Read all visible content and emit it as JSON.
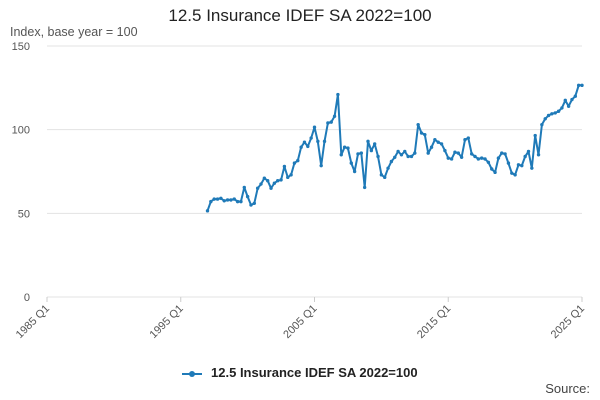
{
  "chart_data": {
    "type": "line",
    "title": "12.5 Insurance IDEF SA 2022=100",
    "ylabel": "Index, base year = 100",
    "xlabel": "",
    "source_label": "Source:",
    "ylim": [
      0,
      150
    ],
    "y_ticks": [
      0,
      50,
      100,
      150
    ],
    "x_range": [
      "1985 Q1",
      "2025 Q1"
    ],
    "x_ticks": [
      "1985 Q1",
      "1995 Q1",
      "2005 Q1",
      "2015 Q1",
      "2025 Q1"
    ],
    "grid": true,
    "legend_position": "bottom",
    "color": "#1f7ab8",
    "series": [
      {
        "name": "12.5 Insurance IDEF SA 2022=100",
        "x": [
          "1997 Q1",
          "1997 Q2",
          "1997 Q3",
          "1997 Q4",
          "1998 Q1",
          "1998 Q2",
          "1998 Q3",
          "1998 Q4",
          "1999 Q1",
          "1999 Q2",
          "1999 Q3",
          "1999 Q4",
          "2000 Q1",
          "2000 Q2",
          "2000 Q3",
          "2000 Q4",
          "2001 Q1",
          "2001 Q2",
          "2001 Q3",
          "2001 Q4",
          "2002 Q1",
          "2002 Q2",
          "2002 Q3",
          "2002 Q4",
          "2003 Q1",
          "2003 Q2",
          "2003 Q3",
          "2003 Q4",
          "2004 Q1",
          "2004 Q2",
          "2004 Q3",
          "2004 Q4",
          "2005 Q1",
          "2005 Q2",
          "2005 Q3",
          "2005 Q4",
          "2006 Q1",
          "2006 Q2",
          "2006 Q3",
          "2006 Q4",
          "2007 Q1",
          "2007 Q2",
          "2007 Q3",
          "2007 Q4",
          "2008 Q1",
          "2008 Q2",
          "2008 Q3",
          "2008 Q4",
          "2009 Q1",
          "2009 Q2",
          "2009 Q3",
          "2009 Q4",
          "2010 Q1",
          "2010 Q2",
          "2010 Q3",
          "2010 Q4",
          "2011 Q1",
          "2011 Q2",
          "2011 Q3",
          "2011 Q4",
          "2012 Q1",
          "2012 Q2",
          "2012 Q3",
          "2012 Q4",
          "2013 Q1",
          "2013 Q2",
          "2013 Q3",
          "2013 Q4",
          "2014 Q1",
          "2014 Q2",
          "2014 Q3",
          "2014 Q4",
          "2015 Q1",
          "2015 Q2",
          "2015 Q3",
          "2015 Q4",
          "2016 Q1",
          "2016 Q2",
          "2016 Q3",
          "2016 Q4",
          "2017 Q1",
          "2017 Q2",
          "2017 Q3",
          "2017 Q4",
          "2018 Q1",
          "2018 Q2",
          "2018 Q3",
          "2018 Q4",
          "2019 Q1",
          "2019 Q2",
          "2019 Q3",
          "2019 Q4",
          "2020 Q1",
          "2020 Q2",
          "2020 Q3",
          "2020 Q4",
          "2021 Q1",
          "2021 Q2",
          "2021 Q3",
          "2021 Q4",
          "2022 Q1",
          "2022 Q2",
          "2022 Q3",
          "2022 Q4",
          "2023 Q1",
          "2023 Q2",
          "2023 Q3",
          "2023 Q4",
          "2024 Q1",
          "2024 Q2",
          "2024 Q3",
          "2024 Q4",
          "2025 Q1"
        ],
        "values": [
          51.5,
          57,
          58.5,
          58.5,
          59,
          57.5,
          58,
          58,
          58.5,
          57,
          57,
          65.5,
          60,
          55,
          56,
          65,
          67.5,
          71,
          69.5,
          65,
          68,
          69.5,
          70,
          78,
          71.5,
          73,
          80,
          81.5,
          89.5,
          92.5,
          90,
          95,
          101.5,
          93,
          78.5,
          93,
          104,
          104.5,
          108,
          121,
          85,
          89.5,
          89,
          80,
          75,
          85.5,
          86,
          65.5,
          93,
          87.5,
          91.5,
          84,
          73,
          71.5,
          77,
          81,
          83.5,
          87,
          85,
          87,
          84,
          84,
          86,
          103,
          98,
          97,
          86,
          89.5,
          94,
          92.5,
          91.5,
          87.5,
          83,
          82.5,
          86.5,
          86,
          83.5,
          94,
          95,
          85.5,
          84,
          82.5,
          83,
          82.5,
          80.5,
          76.5,
          74.5,
          83,
          86,
          85.5,
          80,
          74,
          73,
          79,
          78.5,
          84,
          87,
          77,
          96.5,
          85,
          103,
          106.5,
          108.5,
          109.5,
          110,
          111,
          113,
          117.5,
          114,
          118,
          120,
          126.5,
          126.5
        ]
      }
    ]
  }
}
